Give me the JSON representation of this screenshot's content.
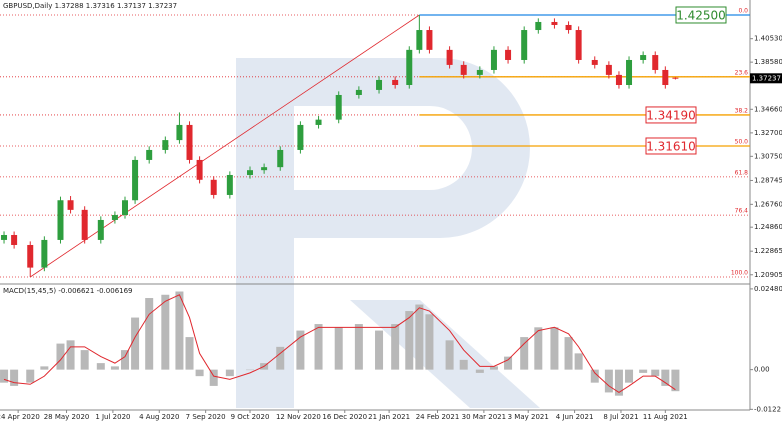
{
  "chart_data": {
    "type": "candlestick",
    "title": "GBPUSD,Daily",
    "up_color": "#2e9e3e",
    "down_color": "#e0282e",
    "x": [
      2,
      7,
      15,
      22,
      30,
      35,
      42,
      50,
      57,
      62,
      67,
      74,
      82,
      89,
      94,
      99,
      106,
      114,
      124,
      131,
      139,
      149,
      158,
      168,
      178,
      188,
      196,
      203,
      208,
      213,
      223,
      230,
      238,
      245,
      252,
      260,
      267,
      275,
      282,
      287,
      295,
      302,
      307,
      312,
      319,
      325,
      330,
      335
    ],
    "open": [
      1.238,
      1.2421,
      1.2338,
      1.215,
      1.238,
      1.271,
      1.263,
      1.238,
      1.2546,
      1.2587,
      1.271,
      1.3045,
      1.3128,
      1.321,
      1.3336,
      1.3045,
      1.288,
      1.2754,
      1.292,
      1.296,
      1.2985,
      1.3128,
      1.3336,
      1.338,
      1.3585,
      1.3627,
      1.371,
      1.3668,
      1.396,
      1.4125,
      1.396,
      1.3835,
      1.3752,
      1.3793,
      1.396,
      1.3876,
      1.4125,
      1.4192,
      1.4167,
      1.4125,
      1.3876,
      1.3835,
      1.3752,
      1.3668,
      1.3876,
      1.3917,
      1.3793,
      1.37288
    ],
    "high": [
      1.2451,
      1.245,
      1.2368,
      1.241,
      1.274,
      1.2745,
      1.266,
      1.2576,
      1.2617,
      1.274,
      1.3075,
      1.3158,
      1.324,
      1.344,
      1.3366,
      1.3075,
      1.291,
      1.295,
      1.299,
      1.3015,
      1.3158,
      1.3366,
      1.341,
      1.3615,
      1.3657,
      1.374,
      1.374,
      1.399,
      1.425,
      1.4155,
      1.399,
      1.3865,
      1.3823,
      1.399,
      1.399,
      1.4155,
      1.4222,
      1.4222,
      1.4197,
      1.4155,
      1.3906,
      1.3865,
      1.3782,
      1.3906,
      1.3947,
      1.3947,
      1.3823,
      1.37316
    ],
    "low": [
      1.235,
      1.2308,
      1.2072,
      1.212,
      1.235,
      1.26,
      1.235,
      1.235,
      1.2516,
      1.2557,
      1.268,
      1.3015,
      1.3098,
      1.318,
      1.3015,
      1.285,
      1.2724,
      1.2724,
      1.289,
      1.293,
      1.2955,
      1.3098,
      1.3306,
      1.335,
      1.3555,
      1.3597,
      1.3638,
      1.3638,
      1.393,
      1.393,
      1.3805,
      1.3722,
      1.3722,
      1.3763,
      1.3846,
      1.3846,
      1.4095,
      1.4137,
      1.4095,
      1.3846,
      1.3805,
      1.3722,
      1.3638,
      1.3638,
      1.3846,
      1.3763,
      1.3638,
      1.37137
    ],
    "close": [
      1.2421,
      1.2338,
      1.215,
      1.238,
      1.271,
      1.263,
      1.238,
      1.2546,
      1.2587,
      1.271,
      1.3045,
      1.3128,
      1.321,
      1.3336,
      1.3045,
      1.288,
      1.2754,
      1.292,
      1.296,
      1.2985,
      1.3128,
      1.3336,
      1.338,
      1.3585,
      1.3627,
      1.371,
      1.3668,
      1.396,
      1.4125,
      1.396,
      1.3835,
      1.3752,
      1.3793,
      1.396,
      1.3876,
      1.4125,
      1.4192,
      1.4167,
      1.4125,
      1.3876,
      1.3835,
      1.3752,
      1.3668,
      1.3876,
      1.3917,
      1.3793,
      1.3668,
      1.37237
    ],
    "xlim": [
      0,
      372
    ],
    "xticks": [
      {
        "value": 9,
        "label": "24 Apr 2020"
      },
      {
        "value": 33,
        "label": "28 May 2020"
      },
      {
        "value": 56,
        "label": "1 Jul 2020"
      },
      {
        "value": 79,
        "label": "4 Aug 2020"
      },
      {
        "value": 102,
        "label": "7 Sep 2020"
      },
      {
        "value": 124,
        "label": "9 Oct 2020"
      },
      {
        "value": 148,
        "label": "12 Nov 2020"
      },
      {
        "value": 171,
        "label": "16 Dec 2020"
      },
      {
        "value": 193,
        "label": "21 Jan 2021"
      },
      {
        "value": 217,
        "label": "24 Feb 2021"
      },
      {
        "value": 240,
        "label": "30 Mar 2021"
      },
      {
        "value": 262,
        "label": "3 May 2021"
      },
      {
        "value": 285,
        "label": "4 Jun 2021"
      },
      {
        "value": 308,
        "label": "8 Jul 2021"
      },
      {
        "value": 330,
        "label": "11 Aug 2021"
      }
    ],
    "ylim": [
      1.2022,
      1.4358
    ],
    "yticks": [
      {
        "value": 1.4053,
        "label": "1.40530"
      },
      {
        "value": 1.3858,
        "label": "1.38580"
      },
      {
        "value": 1.3466,
        "label": "1.34660"
      },
      {
        "value": 1.327,
        "label": "1.32700"
      },
      {
        "value": 1.3075,
        "label": "1.30750"
      },
      1.28745,
      {
        "value": 1.2676,
        "label": "1.26760"
      },
      {
        "value": 1.2486,
        "label": "1.24860"
      },
      1.22865,
      1.20905
    ],
    "fib": {
      "x_from": 15,
      "x_to": 208,
      "dotted_color": "#e0282e",
      "levels": [
        {
          "name": "0.0",
          "price": {
            "value": 1.425,
            "label": "1.42500"
          },
          "color": "#1e88e5",
          "box_color": "#2e8b2e"
        },
        {
          "name": "23.6",
          "price": 1.3736,
          "color": "#f5a000"
        },
        {
          "name": "38.2",
          "price": {
            "value": 1.3419,
            "label": "1.34190"
          },
          "color": "#f5a000",
          "box_color": "#e0282e"
        },
        {
          "name": "50.0",
          "price": {
            "value": 1.3161,
            "label": "1.31610"
          },
          "color": "#f5a000",
          "box_color": "#e0282e"
        },
        {
          "name": "61.8",
          "price": 1.2904
        },
        {
          "name": "76.4",
          "price": 1.2586
        },
        {
          "name": "100.0",
          "price": 1.2072
        }
      ]
    },
    "macd": {
      "title": "MACD(15,45,5)",
      "hist_color": "#b8b8b8",
      "signal_color": "#e0282e",
      "histogram": [
        -0.004,
        -0.005,
        -0.004,
        0.001,
        0.008,
        0.009,
        0.006,
        0.002,
        0.001,
        0.006,
        0.016,
        0.022,
        0.023,
        0.024,
        0.01,
        -0.002,
        -0.005,
        -0.002,
        0,
        0.002,
        0.007,
        0.012,
        0.014,
        0.013,
        0.014,
        0.012,
        0.014,
        0.018,
        0.02,
        0.017,
        0.009,
        0.003,
        -0.001,
        0.001,
        0.004,
        0.01,
        0.013,
        0.013,
        0.01,
        0.005,
        -0.004,
        -0.007,
        -0.008,
        -0.004,
        -0.001,
        -0.002,
        -0.005,
        -0.006621
      ],
      "signal": [
        -0.003,
        -0.004,
        -0.0045,
        -0.002,
        0.003,
        0.007,
        0.007,
        0.004,
        0.002,
        0.004,
        0.01,
        0.017,
        0.021,
        0.023,
        0.016,
        0.005,
        -0.002,
        -0.003,
        -0.001,
        0.001,
        0.005,
        0.01,
        0.013,
        0.013,
        0.013,
        0.013,
        0.013,
        0.016,
        0.019,
        0.018,
        0.012,
        0.006,
        0.001,
        0.001,
        0.003,
        0.008,
        0.012,
        0.013,
        0.011,
        0.007,
        -0.001,
        -0.005,
        -0.007,
        -0.005,
        -0.002,
        -0.002,
        -0.004,
        -0.006169
      ],
      "ylim": [
        -0.0124,
        0.026
      ],
      "yticks": [
        0.024803,
        {
          "value": 0,
          "label": "0.00"
        },
        -0.0122
      ]
    }
  }
}
